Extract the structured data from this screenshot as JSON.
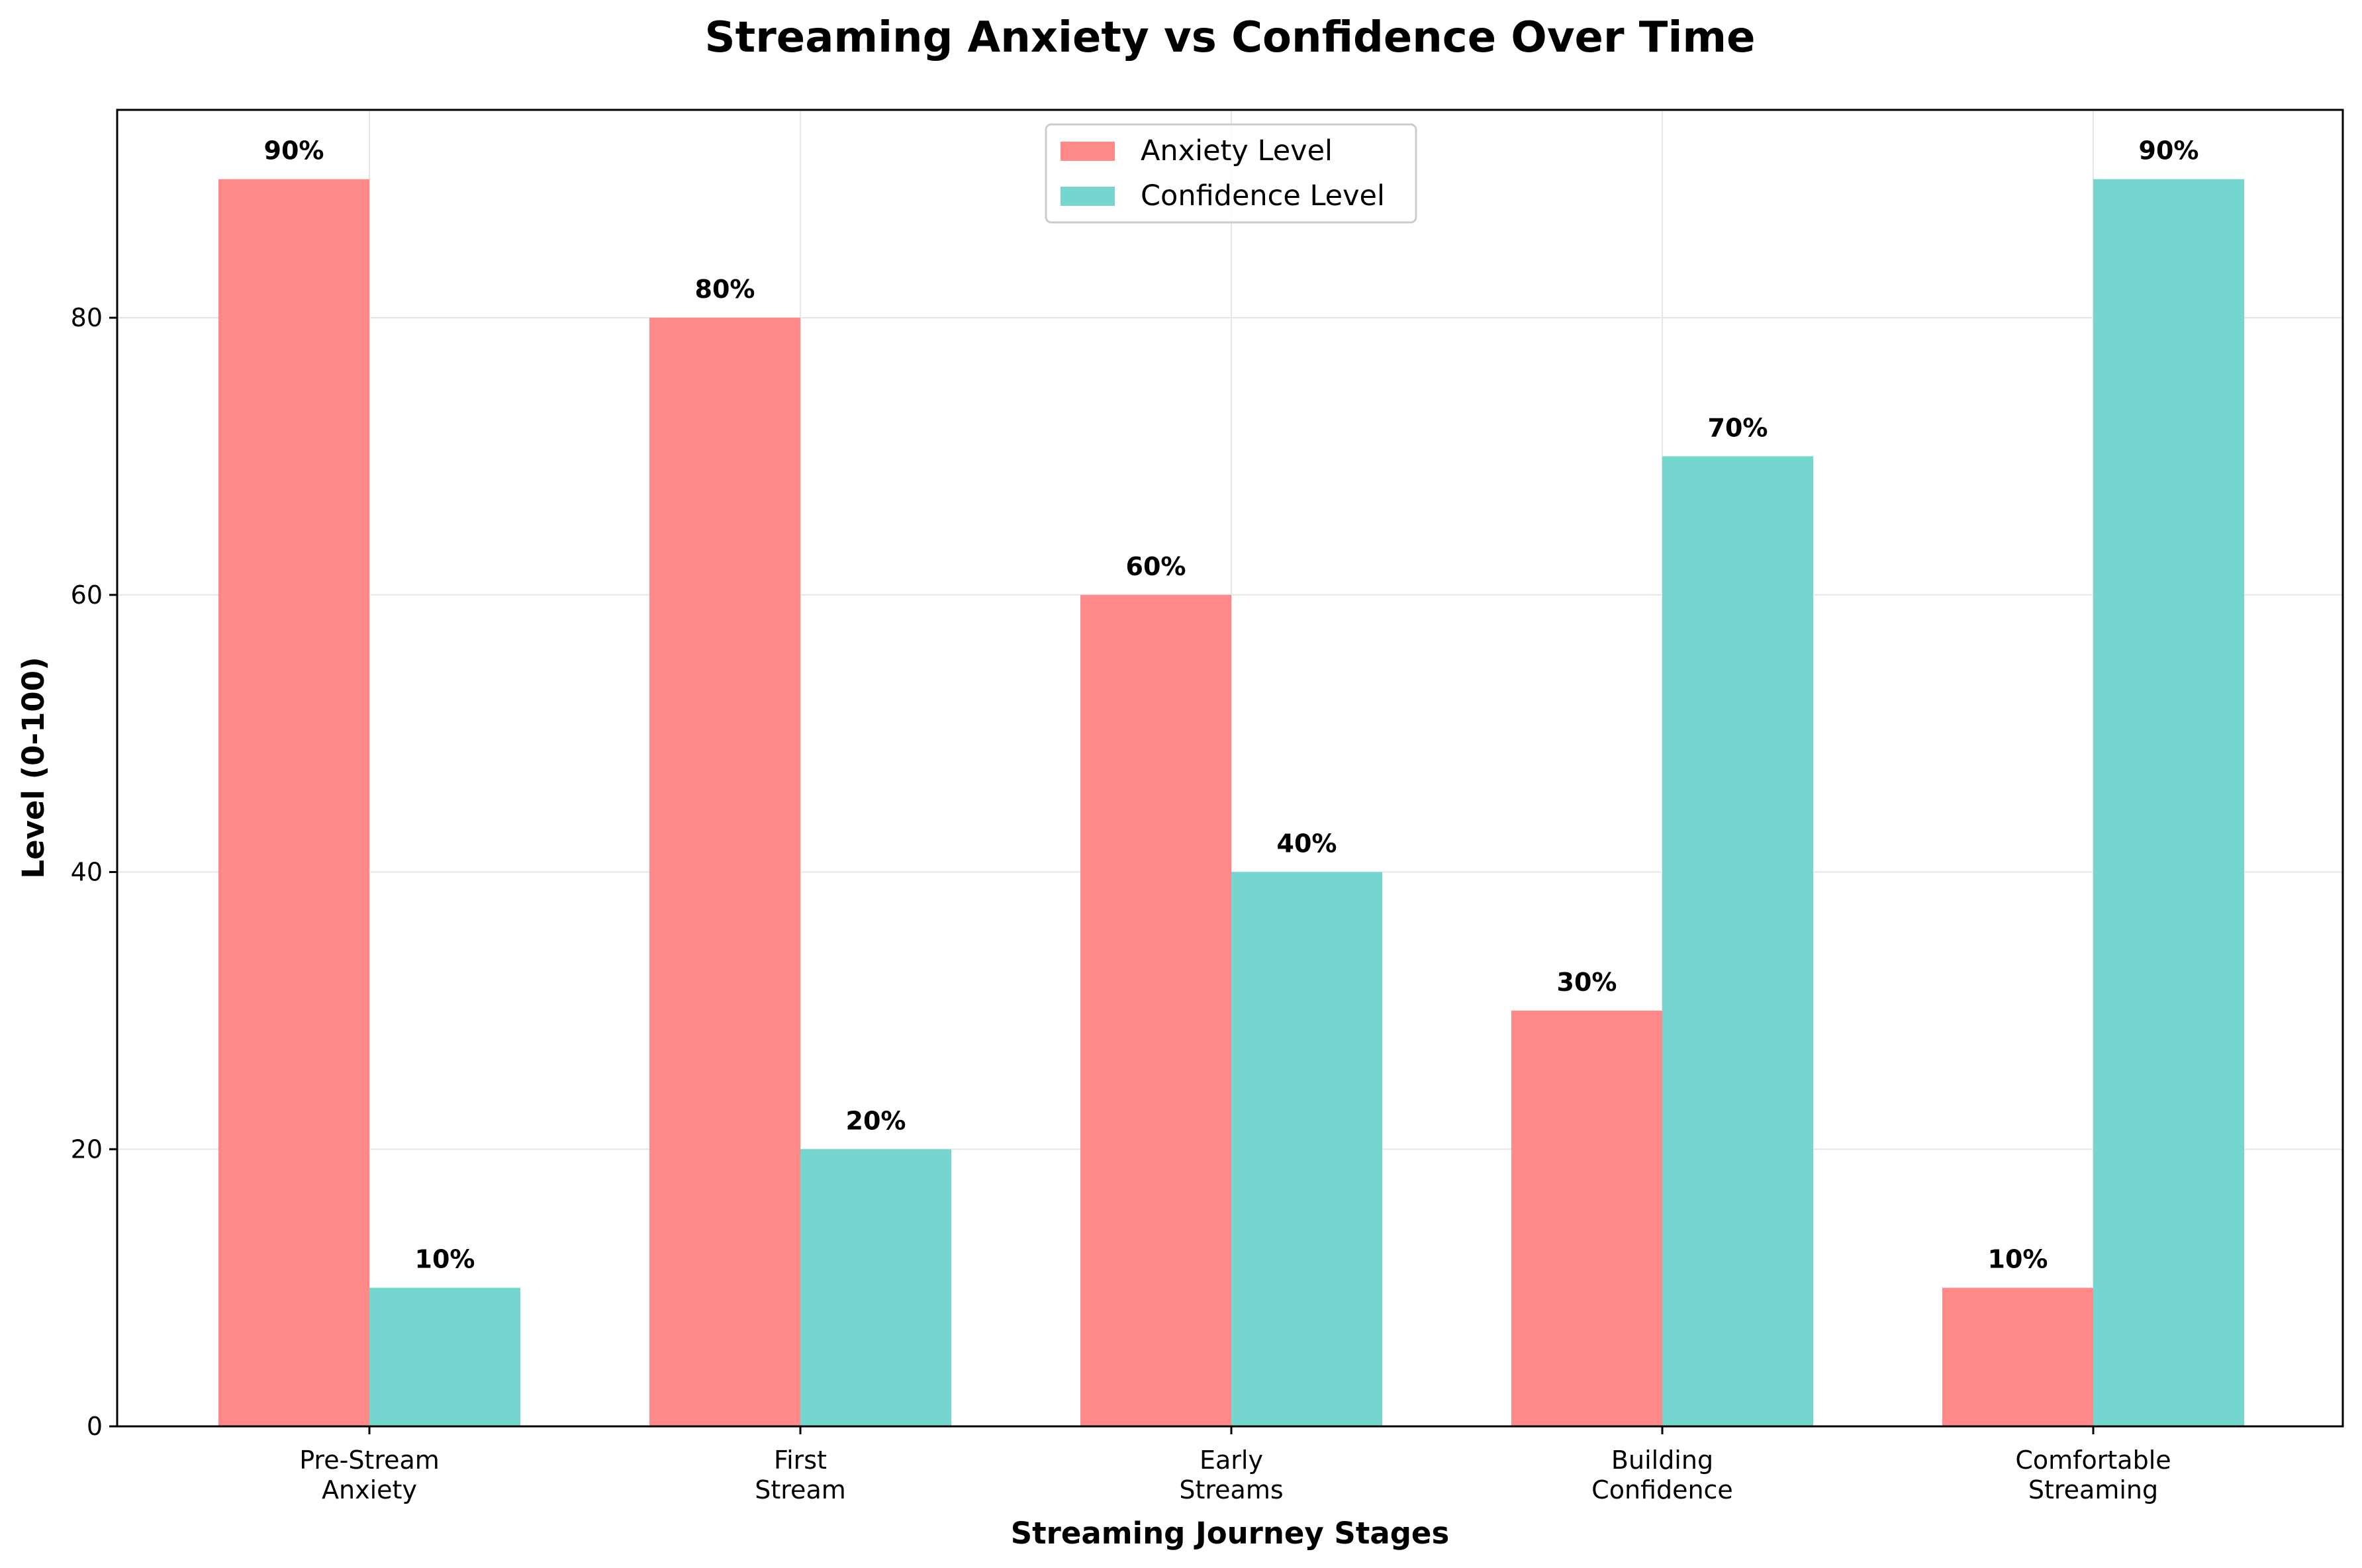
{
  "chart_data": {
    "type": "bar",
    "title": "Streaming Anxiety vs Confidence Over Time",
    "xlabel": "Streaming Journey Stages",
    "ylabel": "Level (0-100)",
    "categories": [
      [
        "Pre-Stream",
        "Anxiety"
      ],
      [
        "First",
        "Stream"
      ],
      [
        "Early",
        "Streams"
      ],
      [
        "Building",
        "Confidence"
      ],
      [
        "Comfortable",
        "Streaming"
      ]
    ],
    "series": [
      {
        "name": "Anxiety Level",
        "values": [
          90,
          80,
          60,
          30,
          10
        ],
        "color": "#FF8989"
      },
      {
        "name": "Confidence Level",
        "values": [
          10,
          20,
          40,
          70,
          90
        ],
        "color": "#74D6CE"
      }
    ],
    "value_suffix": "%",
    "ylim": [
      0,
      95
    ],
    "yticks": [
      0,
      20,
      40,
      60,
      80
    ],
    "grid": true,
    "legend_position": "top-center"
  }
}
